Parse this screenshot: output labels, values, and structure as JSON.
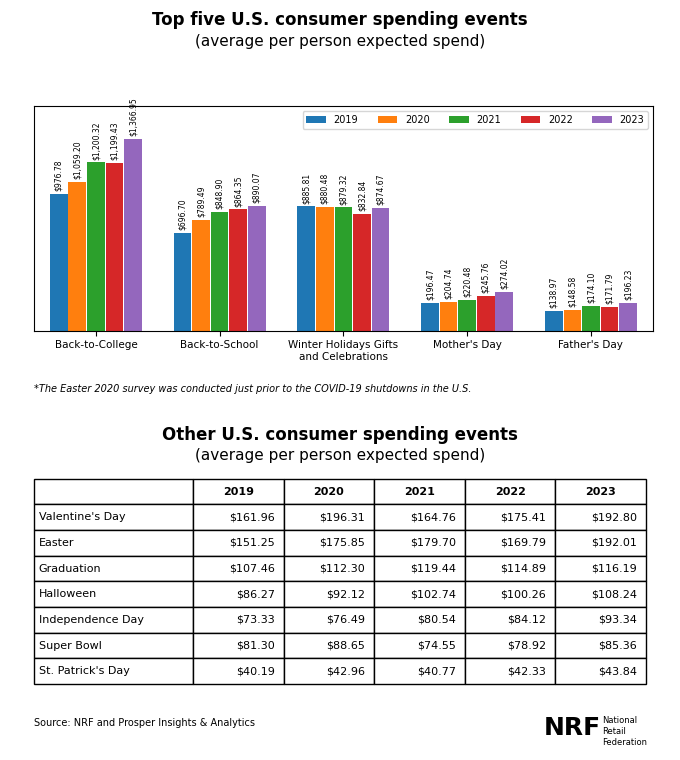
{
  "chart_data": [
    {
      "type": "bar",
      "title": "Top five U.S. consumer spending events",
      "subtitle": "(average per person expected spend)",
      "categories": [
        "Back-to-College",
        "Back-to-School",
        "Winter Holidays Gifts\nand Celebrations",
        "Mother's Day",
        "Father's Day"
      ],
      "series": [
        {
          "name": "2019",
          "values": [
            976.78,
            696.7,
            885.81,
            196.47,
            138.97
          ],
          "value_labels": [
            "$976.78",
            "$696.70",
            "$885.81",
            "$196.47",
            "$138.97"
          ]
        },
        {
          "name": "2020",
          "values": [
            1059.2,
            789.49,
            880.48,
            204.74,
            148.58
          ],
          "value_labels": [
            "$1,059.20",
            "$789.49",
            "$880.48",
            "$204.74",
            "$148.58"
          ]
        },
        {
          "name": "2021",
          "values": [
            1200.32,
            848.9,
            879.32,
            220.48,
            174.1
          ],
          "value_labels": [
            "$1,200.32",
            "$848.90",
            "$879.32",
            "$220.48",
            "$174.10"
          ]
        },
        {
          "name": "2022",
          "values": [
            1199.43,
            864.35,
            832.84,
            245.76,
            171.79
          ],
          "value_labels": [
            "$1,199.43",
            "$864.35",
            "$832.84",
            "$245.76",
            "$171.79"
          ]
        },
        {
          "name": "2023",
          "values": [
            1366.95,
            890.07,
            874.67,
            274.02,
            196.23
          ],
          "value_labels": [
            "$1,366.95",
            "$890.07",
            "$874.67",
            "$274.02",
            "$196.23"
          ]
        }
      ],
      "ylim": [
        0,
        1600
      ],
      "yticks": [],
      "tick_labels": "x",
      "data_labels": true,
      "legend": "upper right",
      "annotations": [
        "*The Easter 2020 survey was conducted just prior to the COVID-19 shutdowns in the U.S."
      ]
    },
    {
      "type": "table",
      "title": "Other U.S. consumer spending events",
      "subtitle": "(average per person expected spend)",
      "categories": [
        "Valentine's Day",
        "Easter",
        "Graduation",
        "Halloween",
        "Independence Day",
        "Super Bowl",
        "St. Patrick's Day"
      ],
      "series": [
        {
          "name": "2019",
          "values": [
            161.96,
            151.25,
            107.46,
            86.27,
            73.33,
            81.3,
            40.19
          ],
          "value_labels": [
            "$161.96",
            "$151.25",
            "$107.46",
            "$86.27",
            "$73.33",
            "$81.30",
            "$40.19"
          ]
        },
        {
          "name": "2020",
          "values": [
            196.31,
            175.85,
            112.3,
            92.12,
            76.49,
            88.65,
            42.96
          ],
          "value_labels": [
            "$196.31",
            "$175.85",
            "$112.30",
            "$92.12",
            "$76.49",
            "$88.65",
            "$42.96"
          ]
        },
        {
          "name": "2021",
          "values": [
            164.76,
            179.7,
            119.44,
            102.74,
            80.54,
            74.55,
            40.77
          ],
          "value_labels": [
            "$164.76",
            "$179.70",
            "$119.44",
            "$102.74",
            "$80.54",
            "$74.55",
            "$40.77"
          ]
        },
        {
          "name": "2022",
          "values": [
            175.41,
            169.79,
            114.89,
            100.26,
            84.12,
            78.92,
            42.33
          ],
          "value_labels": [
            "$175.41",
            "$169.79",
            "$114.89",
            "$100.26",
            "$84.12",
            "$78.92",
            "$42.33"
          ]
        },
        {
          "name": "2023",
          "values": [
            192.8,
            192.01,
            116.19,
            108.24,
            93.34,
            85.36,
            43.84
          ],
          "value_labels": [
            "$192.80",
            "$192.01",
            "$116.19",
            "$108.24",
            "$93.34",
            "$85.36",
            "$43.84"
          ]
        }
      ],
      "annotations": [
        "Source: NRF and Prosper Insights & Analytics",
        "NRF",
        "National\nRetail\nFederation"
      ]
    }
  ]
}
